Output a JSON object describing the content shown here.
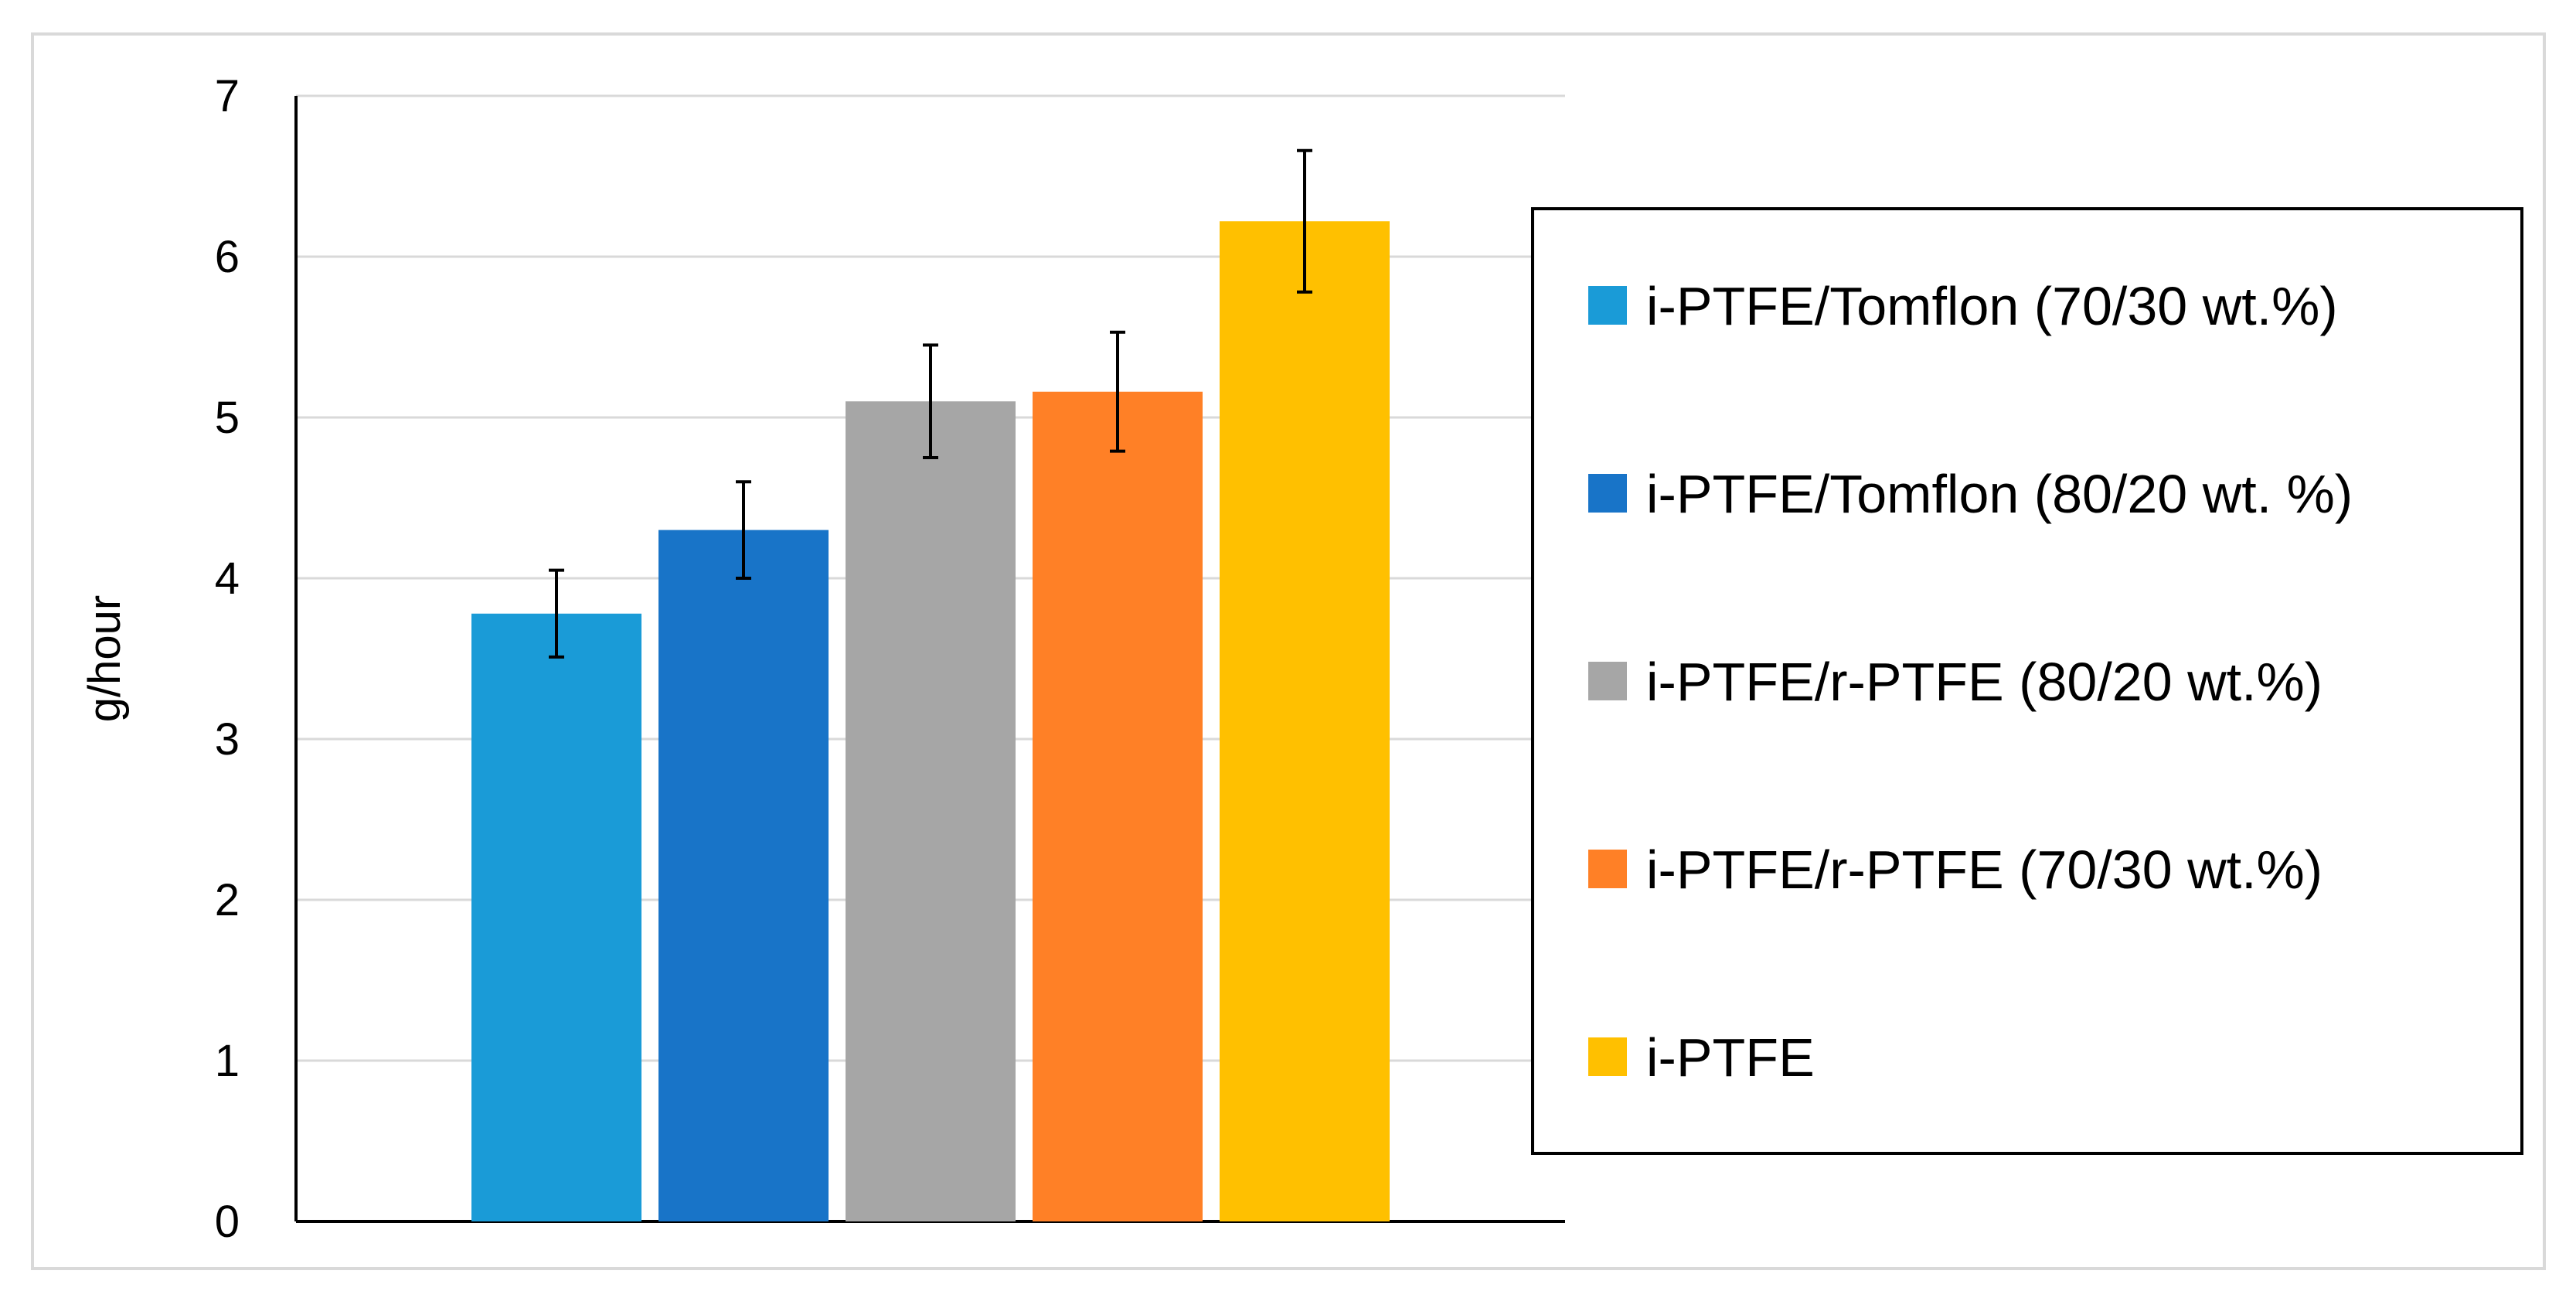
{
  "chart_data": {
    "type": "bar",
    "title": "",
    "xlabel": "",
    "ylabel": "g/hour",
    "ylim": [
      0,
      7
    ],
    "yticks": [
      0,
      1,
      2,
      3,
      4,
      5,
      6,
      7
    ],
    "grid": true,
    "legend_position": "right",
    "series": [
      {
        "name": "i-PTFE/Tomflon (70/30 wt.%)",
        "value": 3.78,
        "error": 0.27,
        "color": "#1a9bd7"
      },
      {
        "name": "i-PTFE/Tomflon (80/20 wt. %)",
        "value": 4.3,
        "error": 0.3,
        "color": "#1874c8"
      },
      {
        "name": "i-PTFE/r-PTFE (80/20 wt.%)",
        "value": 5.1,
        "error": 0.35,
        "color": "#a6a6a6"
      },
      {
        "name": "i-PTFE/r-PTFE (70/30 wt.%)",
        "value": 5.16,
        "error": 0.37,
        "color": "#ff8026"
      },
      {
        "name": "i-PTFE",
        "value": 6.22,
        "error": 0.44,
        "color": "#ffc000"
      }
    ]
  }
}
